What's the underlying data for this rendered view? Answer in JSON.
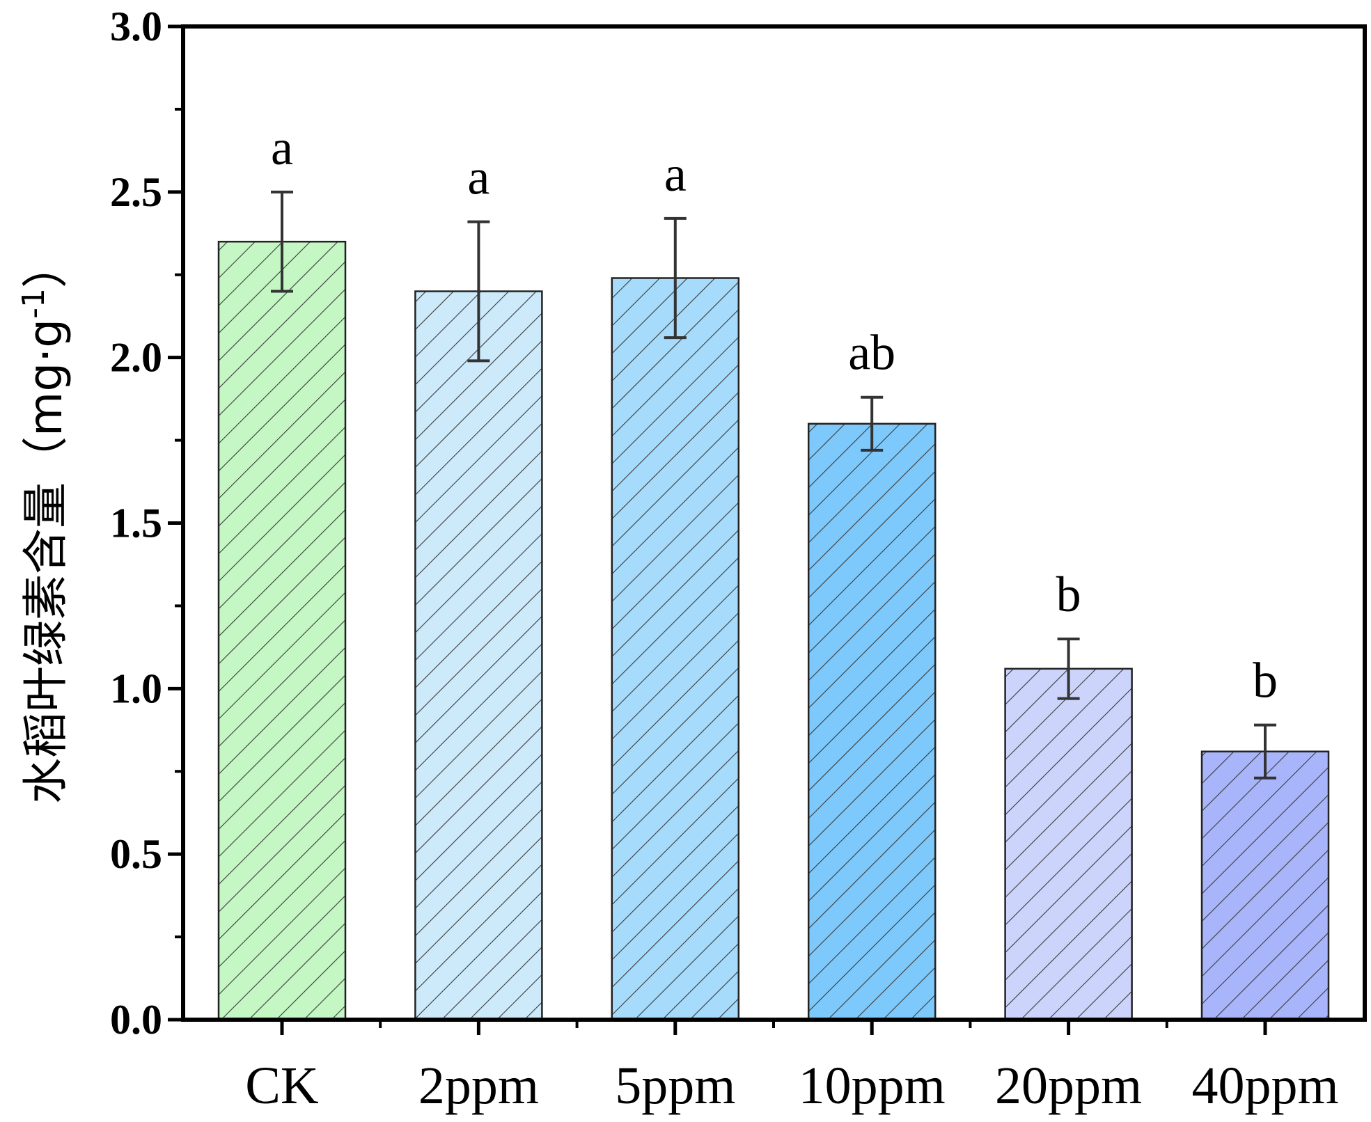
{
  "chart_data": {
    "type": "bar",
    "title": "",
    "xlabel": "",
    "ylabel": "水稻叶绿素含量（mg·g-1）",
    "ylabel_main": "水稻叶绿素含量（mg·g",
    "ylabel_sup": "-1",
    "ylabel_close": "）",
    "ylim": [
      0,
      3.0
    ],
    "yticks": [
      "0.0",
      "0.5",
      "1.0",
      "1.5",
      "2.0",
      "2.5",
      "3.0"
    ],
    "grid": false,
    "categories": [
      "CK",
      "2ppm",
      "5ppm",
      "10ppm",
      "20ppm",
      "40ppm"
    ],
    "values": [
      2.35,
      2.2,
      2.24,
      1.8,
      1.06,
      0.81
    ],
    "errors": [
      0.15,
      0.21,
      0.18,
      0.08,
      0.09,
      0.08
    ],
    "significance": [
      "a",
      "a",
      "a",
      "ab",
      "b",
      "b"
    ],
    "colors": [
      "#c4f7c4",
      "#cdeafb",
      "#a6dbfb",
      "#7ec9fb",
      "#ccd4fb",
      "#a8b5fb"
    ],
    "pattern": "diagonal-hatch"
  }
}
